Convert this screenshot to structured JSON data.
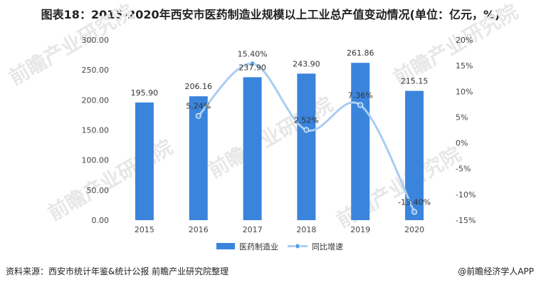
{
  "title": "图表18：2015-2020年西安市医药制造业规模以上工业总产值变动情况(单位：亿元，%)",
  "watermark": "前瞻产业研究院",
  "footer": {
    "source": "资料来源：西安市统计年鉴&统计公报 前瞻产业研究院整理",
    "brand": "@前瞻经济学人APP"
  },
  "colors": {
    "bar": "#3a84dc",
    "line": "#a9cdf2",
    "marker": "#5aa0e8"
  },
  "chart_data": {
    "type": "bar",
    "title": "2015-2020年西安市医药制造业规模以上工业总产值变动情况",
    "categories": [
      "2015",
      "2016",
      "2017",
      "2018",
      "2019",
      "2020"
    ],
    "series": [
      {
        "name": "医药制造业",
        "type": "bar",
        "axis": "left",
        "values": [
          195.9,
          206.16,
          237.9,
          243.9,
          261.86,
          215.15
        ],
        "labels": [
          "195.90",
          "206.16",
          "237.90",
          "243.90",
          "261.86",
          "215.15"
        ]
      },
      {
        "name": "同比增速",
        "type": "line",
        "axis": "right",
        "values": [
          null,
          5.24,
          15.4,
          2.52,
          7.36,
          -13.4
        ],
        "labels": [
          "",
          "5.24%",
          "15.40%",
          "2.52%",
          "7.36%",
          "-13.40%"
        ]
      }
    ],
    "ylim_left": [
      0,
      300
    ],
    "yticks_left": [
      "0.00",
      "50.00",
      "100.00",
      "150.00",
      "200.00",
      "250.00",
      "300.00"
    ],
    "ylim_right": [
      -15,
      20
    ],
    "yticks_right": [
      "-15%",
      "-10%",
      "-5%",
      "0%",
      "5%",
      "10%",
      "15%",
      "20%"
    ],
    "legend": [
      "医药制造业",
      "同比增速"
    ],
    "legend_position": "bottom",
    "grid": false
  }
}
